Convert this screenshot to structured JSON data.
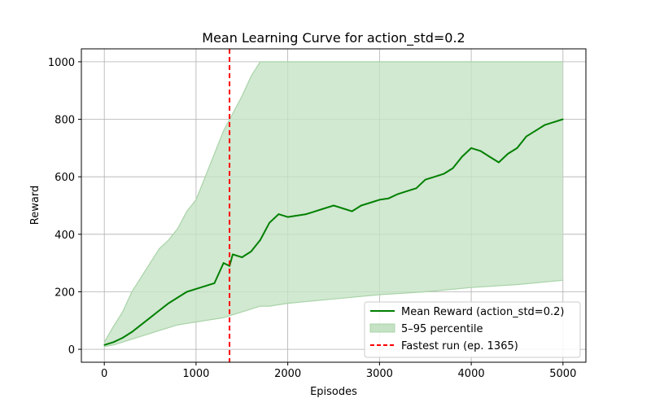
{
  "chart_data": {
    "type": "line",
    "title": "Mean Learning Curve for action_std=0.2",
    "xlabel": "Episodes",
    "ylabel": "Reward",
    "xlim": [
      -250,
      5250
    ],
    "ylim": [
      -45,
      1045
    ],
    "xticks": [
      0,
      1000,
      2000,
      3000,
      4000,
      5000
    ],
    "yticks": [
      0,
      200,
      400,
      600,
      800,
      1000
    ],
    "grid": true,
    "legend_position": "lower-right",
    "colors": {
      "mean": "#008000",
      "band": "#c5e2c5",
      "band_spike": "#a8d4a8",
      "fastest": "#ff0000",
      "grid": "#b0b0b0"
    },
    "series": [
      {
        "name": "Mean Reward (action_std=0.2)",
        "style": "solid",
        "x": [
          0,
          100,
          200,
          300,
          400,
          500,
          600,
          700,
          800,
          900,
          1000,
          1100,
          1200,
          1300,
          1365,
          1400,
          1500,
          1600,
          1700,
          1800,
          1900,
          2000,
          2100,
          2200,
          2300,
          2400,
          2500,
          2600,
          2700,
          2800,
          2900,
          3000,
          3100,
          3200,
          3300,
          3400,
          3500,
          3600,
          3700,
          3800,
          3900,
          4000,
          4100,
          4200,
          4300,
          4400,
          4500,
          4600,
          4700,
          4800,
          4900,
          5000
        ],
        "y": [
          15,
          25,
          40,
          60,
          85,
          110,
          135,
          160,
          180,
          200,
          210,
          220,
          230,
          300,
          290,
          330,
          320,
          340,
          380,
          440,
          470,
          460,
          465,
          470,
          480,
          490,
          500,
          490,
          480,
          500,
          510,
          520,
          525,
          540,
          550,
          560,
          590,
          600,
          610,
          630,
          670,
          700,
          690,
          670,
          650,
          680,
          700,
          740,
          760,
          780,
          790,
          800
        ]
      },
      {
        "name": "5–95 percentile",
        "style": "band",
        "x": [
          0,
          100,
          200,
          300,
          400,
          500,
          600,
          700,
          800,
          900,
          1000,
          1100,
          1200,
          1300,
          1400,
          1500,
          1600,
          1700,
          1800,
          2000,
          2500,
          3000,
          3500,
          4000,
          4500,
          5000
        ],
        "lower": [
          10,
          15,
          25,
          35,
          45,
          55,
          65,
          75,
          85,
          90,
          95,
          100,
          105,
          110,
          120,
          130,
          140,
          150,
          150,
          160,
          175,
          190,
          200,
          215,
          225,
          240
        ],
        "upper": [
          25,
          80,
          130,
          200,
          250,
          300,
          350,
          380,
          420,
          480,
          520,
          600,
          680,
          760,
          820,
          880,
          950,
          1000,
          1000,
          1000,
          1000,
          1000,
          1000,
          1000,
          1000,
          1000
        ]
      },
      {
        "name": "Fastest run (ep. 1365)",
        "style": "dashed-vertical",
        "x": 1365
      }
    ]
  }
}
